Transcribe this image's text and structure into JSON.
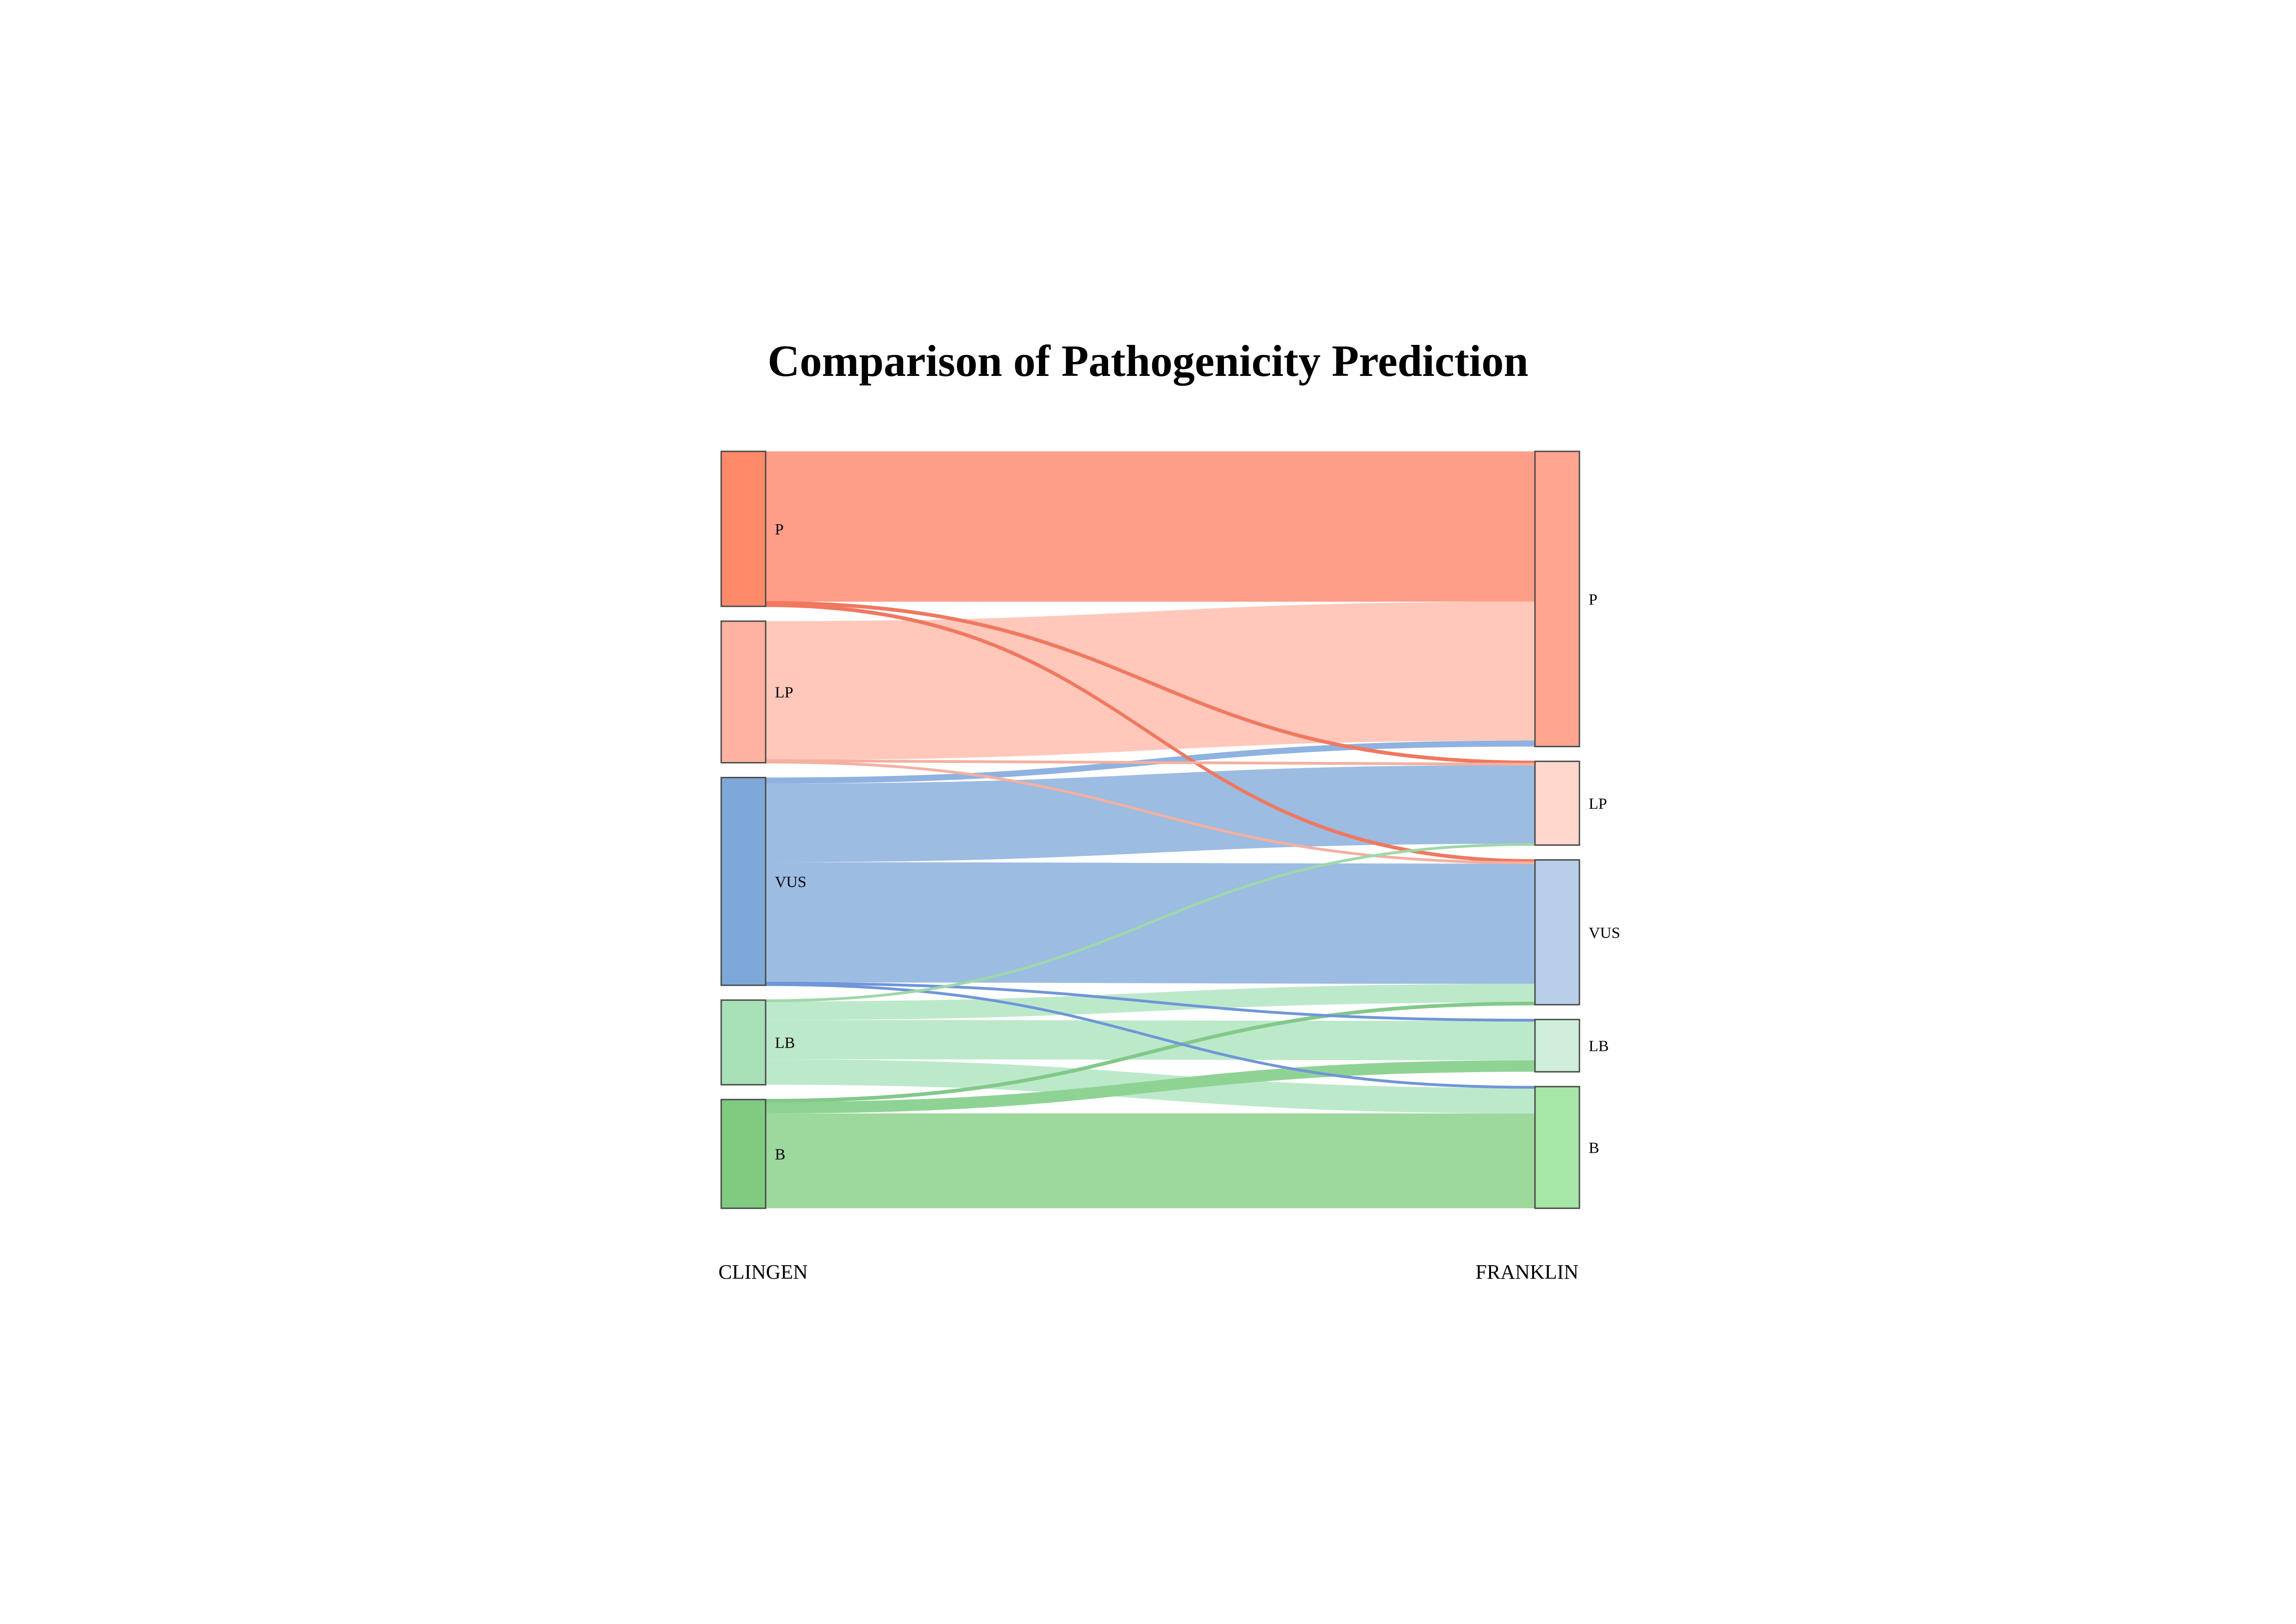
{
  "title": "Comparison of Pathogenicity Prediction",
  "axes": {
    "left": "CLINGEN",
    "right": "FRANKLIN"
  },
  "chart_data": {
    "type": "sankey",
    "title": "Comparison of Pathogenicity Prediction",
    "source_axis": "CLINGEN",
    "target_axis": "FRANKLIN",
    "categories": [
      "P",
      "LP",
      "VUS",
      "LB",
      "B"
    ],
    "source_nodes": [
      {
        "id": "P",
        "label": "P",
        "color": "#ff8a6a"
      },
      {
        "id": "LP",
        "label": "LP",
        "color": "#ffb3a0"
      },
      {
        "id": "VUS",
        "label": "VUS",
        "color": "#7ea8d8"
      },
      {
        "id": "LB",
        "label": "LB",
        "color": "#a8e0b8"
      },
      {
        "id": "B",
        "label": "B",
        "color": "#7fcc80"
      }
    ],
    "target_nodes": [
      {
        "id": "P",
        "label": "P",
        "color": "#ffa590"
      },
      {
        "id": "LP",
        "label": "LP",
        "color": "#ffd7cc"
      },
      {
        "id": "VUS",
        "label": "VUS",
        "color": "#b8cfea"
      },
      {
        "id": "LB",
        "label": "LB",
        "color": "#cfeedc"
      },
      {
        "id": "B",
        "label": "B",
        "color": "#a6e6a6"
      }
    ],
    "flows": [
      {
        "source": "P",
        "target": "P",
        "value": 32.5,
        "color": "#ff9e88",
        "opacity": 1.0
      },
      {
        "source": "P",
        "target": "LP",
        "value": 0.5,
        "color": "#f07860",
        "opacity": 1.0
      },
      {
        "source": "P",
        "target": "VUS",
        "value": 0.5,
        "color": "#f07860",
        "opacity": 1.0
      },
      {
        "source": "LP",
        "target": "P",
        "value": 30,
        "color": "#ffc8bb",
        "opacity": 1.0
      },
      {
        "source": "LP",
        "target": "LP",
        "value": 0.3,
        "color": "#f4b0a0",
        "opacity": 1.0
      },
      {
        "source": "LP",
        "target": "VUS",
        "value": 0.3,
        "color": "#f4b0a0",
        "opacity": 1.0
      },
      {
        "source": "VUS",
        "target": "P",
        "value": 1.3,
        "color": "#8fb2e0",
        "opacity": 1.0
      },
      {
        "source": "VUS",
        "target": "LP",
        "value": 17,
        "color": "#9cbce2",
        "opacity": 1.0
      },
      {
        "source": "VUS",
        "target": "VUS",
        "value": 26,
        "color": "#9cbce2",
        "opacity": 1.0
      },
      {
        "source": "VUS",
        "target": "LB",
        "value": 0.3,
        "color": "#6f96d8",
        "opacity": 1.0
      },
      {
        "source": "VUS",
        "target": "B",
        "value": 0.3,
        "color": "#6f96d8",
        "opacity": 1.0
      },
      {
        "source": "LB",
        "target": "LP",
        "value": 0.3,
        "color": "#9ed8a8",
        "opacity": 1.0
      },
      {
        "source": "LB",
        "target": "VUS",
        "value": 4,
        "color": "#bde9cb",
        "opacity": 1.0
      },
      {
        "source": "LB",
        "target": "LB",
        "value": 8.5,
        "color": "#bde9cb",
        "opacity": 1.0
      },
      {
        "source": "LB",
        "target": "B",
        "value": 5.5,
        "color": "#bde9cb",
        "opacity": 1.0
      },
      {
        "source": "B",
        "target": "VUS",
        "value": 0.5,
        "color": "#82c98a",
        "opacity": 1.0
      },
      {
        "source": "B",
        "target": "LB",
        "value": 2.5,
        "color": "#8fd394",
        "opacity": 1.0
      },
      {
        "source": "B",
        "target": "B",
        "value": 20.5,
        "color": "#9dd89d",
        "opacity": 1.0
      }
    ]
  }
}
